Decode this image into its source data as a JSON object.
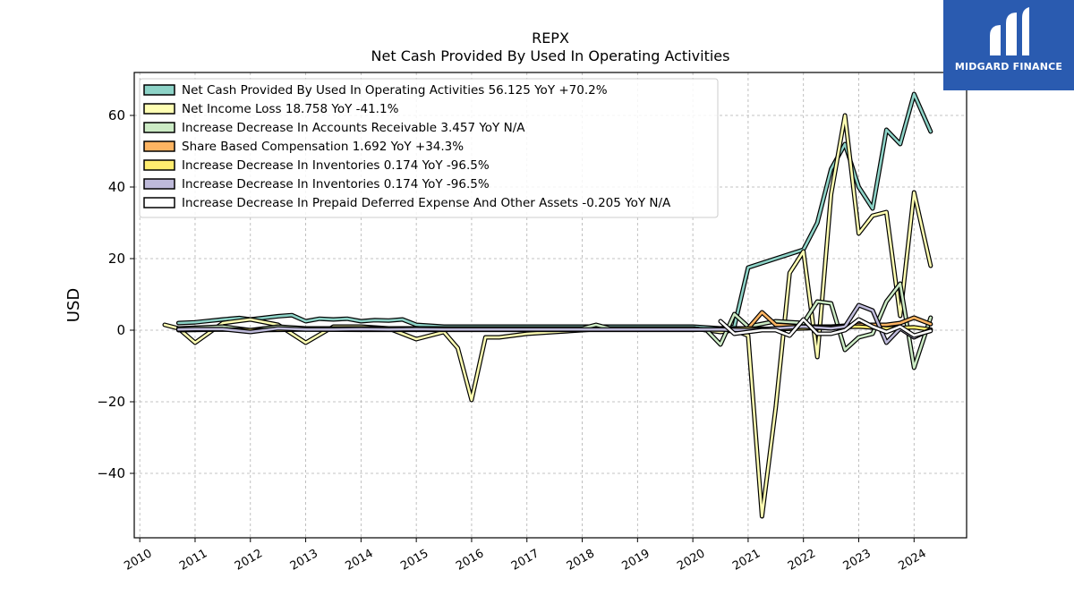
{
  "brand": {
    "name": "MIDGARD FINANCE",
    "bg_color": "#2a5bb0"
  },
  "chart_data": {
    "type": "line",
    "title": "REPX",
    "subtitle": "Net Cash Provided By Used In Operating Activities",
    "ylabel": "USD",
    "xlabel": "",
    "xlim": [
      2009.9,
      2024.95
    ],
    "ylim": [
      -58,
      72
    ],
    "yticks": [
      -40,
      -20,
      0,
      20,
      40,
      60
    ],
    "xticks": [
      2010,
      2011,
      2012,
      2013,
      2014,
      2015,
      2016,
      2017,
      2018,
      2019,
      2020,
      2021,
      2022,
      2023,
      2024
    ],
    "grid": true,
    "legend_position": "top-left",
    "series": [
      {
        "name": "Net Cash Provided By Used In Operating Activities  56.125 YoY +70.2%",
        "color": "#8dd3c7",
        "x": [
          2010.7,
          2011.0,
          2011.5,
          2011.8,
          2012.0,
          2012.5,
          2012.75,
          2013.0,
          2013.25,
          2013.5,
          2013.75,
          2014.0,
          2014.25,
          2014.5,
          2014.75,
          2015.0,
          2015.5,
          2016.0,
          2016.5,
          2017.0,
          2017.5,
          2018.0,
          2018.5,
          2019.0,
          2019.5,
          2020.0,
          2020.5,
          2020.75,
          2021.0,
          2021.5,
          2022.0,
          2022.25,
          2022.5,
          2022.75,
          2023.0,
          2023.25,
          2023.5,
          2023.75,
          2024.0,
          2024.3
        ],
        "y": [
          2.0,
          2.2,
          3.0,
          3.4,
          3.0,
          3.9,
          4.2,
          2.5,
          3.2,
          3.0,
          3.2,
          2.5,
          2.8,
          2.7,
          3.0,
          1.5,
          1.0,
          1.0,
          1.0,
          1.0,
          1.0,
          1.0,
          1.0,
          1.0,
          1.0,
          1.0,
          0.5,
          1.0,
          17.5,
          20.0,
          22.5,
          30.0,
          45.0,
          52.0,
          40.0,
          34.0,
          56.0,
          52.0,
          66.0,
          55.5
        ]
      },
      {
        "name": "Net Income Loss  18.758 YoY -41.1%",
        "color": "#ffffb3",
        "x": [
          2010.45,
          2010.7,
          2011.0,
          2011.5,
          2012.0,
          2012.5,
          2013.0,
          2013.5,
          2014.0,
          2014.5,
          2015.0,
          2015.5,
          2015.75,
          2016.0,
          2016.25,
          2016.5,
          2017.0,
          2017.5,
          2018.0,
          2018.5,
          2019.0,
          2019.5,
          2020.0,
          2020.5,
          2020.75,
          2021.0,
          2021.25,
          2021.5,
          2021.75,
          2022.0,
          2022.25,
          2022.5,
          2022.75,
          2023.0,
          2023.25,
          2023.5,
          2023.75,
          2024.0,
          2024.3
        ],
        "y": [
          1.5,
          0.5,
          -3.5,
          2.0,
          3.0,
          1.5,
          -3.5,
          1.0,
          1.0,
          0.5,
          -2.5,
          -0.5,
          -5.0,
          -19.5,
          -2.0,
          -2.0,
          -1.0,
          -0.5,
          0.0,
          0.5,
          0.5,
          0.5,
          0.5,
          -0.5,
          0.0,
          -1.5,
          -52.0,
          -21.5,
          16.0,
          22.0,
          -7.5,
          38.0,
          60.0,
          27.0,
          32.0,
          33.0,
          4.0,
          38.5,
          18.0
        ]
      },
      {
        "name": "Increase Decrease In Accounts Receivable  3.457 YoY N/A",
        "color": "#ccebc5",
        "x": [
          2010.7,
          2011.5,
          2012.0,
          2012.5,
          2013.0,
          2014.0,
          2015.0,
          2016.0,
          2017.0,
          2018.0,
          2018.25,
          2018.5,
          2019.0,
          2019.5,
          2020.0,
          2020.25,
          2020.5,
          2020.75,
          2021.0,
          2021.5,
          2022.0,
          2022.25,
          2022.5,
          2022.75,
          2023.0,
          2023.25,
          2023.5,
          2023.75,
          2024.0,
          2024.3
        ],
        "y": [
          0.5,
          1.0,
          0.0,
          1.0,
          0.5,
          0.5,
          0.5,
          0.5,
          0.5,
          0.5,
          1.5,
          0.5,
          0.5,
          0.5,
          0.5,
          0.0,
          -4.0,
          4.5,
          1.0,
          2.5,
          2.0,
          8.0,
          7.5,
          -5.5,
          -2.0,
          -1.0,
          8.0,
          13.0,
          -10.5,
          3.5
        ]
      },
      {
        "name": "Share Based Compensation  1.692 YoY +34.3%",
        "color": "#fdb462",
        "x": [
          2020.5,
          2020.75,
          2021.0,
          2021.25,
          2021.5,
          2022.0,
          2022.5,
          2023.0,
          2023.5,
          2023.75,
          2024.0,
          2024.3
        ],
        "y": [
          0.5,
          0.5,
          0.5,
          5.0,
          1.5,
          1.0,
          1.0,
          1.5,
          1.5,
          2.0,
          3.5,
          1.7
        ]
      },
      {
        "name": "Increase Decrease In Inventories  0.174 YoY -96.5%",
        "color": "#ffed6f",
        "x": [
          2010.7,
          2011.5,
          2012.0,
          2013.0,
          2014.0,
          2015.0,
          2016.0,
          2017.0,
          2018.0,
          2019.0,
          2020.0,
          2020.5,
          2021.0,
          2021.5,
          2022.0,
          2022.5,
          2023.0,
          2023.5,
          2024.0,
          2024.3
        ],
        "y": [
          0.0,
          0.2,
          0.0,
          0.2,
          0.1,
          0.1,
          0.1,
          0.1,
          0.1,
          0.1,
          0.1,
          0.3,
          0.5,
          0.3,
          0.5,
          0.8,
          1.0,
          0.5,
          0.8,
          0.17
        ]
      },
      {
        "name": "Increase Decrease In Inventories  0.174 YoY -96.5%",
        "color": "#bebada",
        "x": [
          2010.7,
          2011.0,
          2011.5,
          2012.0,
          2012.5,
          2013.0,
          2013.5,
          2014.0,
          2014.5,
          2015.0,
          2015.5,
          2016.0,
          2016.5,
          2017.0,
          2017.5,
          2018.0,
          2018.5,
          2019.0,
          2019.5,
          2020.0,
          2020.5,
          2021.0,
          2021.5,
          2022.0,
          2022.5,
          2022.75,
          2023.0,
          2023.25,
          2023.5,
          2023.75,
          2024.0,
          2024.3
        ],
        "y": [
          0.2,
          0.3,
          0.3,
          -0.5,
          0.5,
          0.2,
          0.2,
          0.3,
          0.2,
          0.3,
          0.2,
          0.2,
          0.2,
          0.2,
          0.2,
          0.2,
          0.2,
          0.2,
          0.2,
          0.2,
          0.2,
          0.0,
          0.5,
          1.0,
          0.5,
          1.0,
          7.0,
          5.5,
          -3.5,
          0.5,
          -2.0,
          0.17
        ]
      },
      {
        "name": "Increase Decrease In Prepaid Deferred Expense And Other Assets  -0.205 YoY N/A",
        "color": "#ffffff",
        "x": [
          2020.5,
          2020.75,
          2021.0,
          2021.25,
          2021.5,
          2021.75,
          2022.0,
          2022.25,
          2022.5,
          2022.75,
          2023.0,
          2023.25,
          2023.5,
          2023.75,
          2024.0,
          2024.3
        ],
        "y": [
          2.5,
          -1.0,
          -0.5,
          0.0,
          0.0,
          -1.5,
          3.0,
          -1.0,
          -1.0,
          0.0,
          3.0,
          1.0,
          -0.5,
          1.0,
          -1.5,
          -0.2
        ]
      }
    ]
  }
}
